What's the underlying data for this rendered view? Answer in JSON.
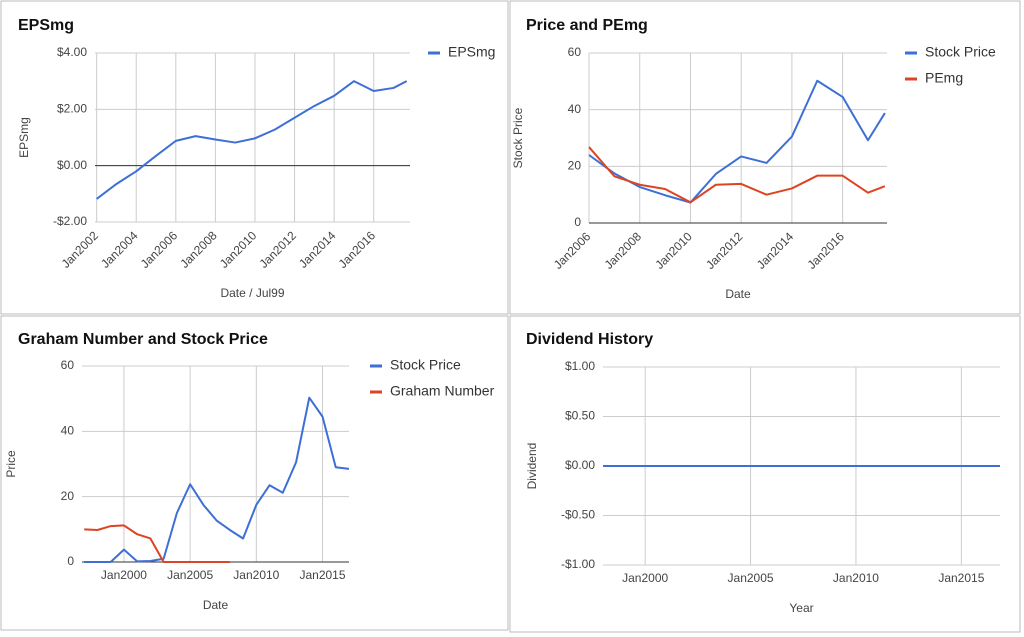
{
  "chart_data": [
    {
      "type": "line",
      "title": "EPSmg",
      "x_label": "Date / Jul99",
      "y_label": "EPSmg",
      "legend": "right",
      "grid": true,
      "x": [
        "2002-01",
        "2003-01",
        "2004-01",
        "2005-01",
        "2006-01",
        "2007-01",
        "2008-01",
        "2009-01",
        "2010-01",
        "2011-01",
        "2012-01",
        "2013-01",
        "2014-01",
        "2015-01",
        "2016-01",
        "2017-01",
        "2017-09"
      ],
      "series": [
        {
          "name": "EPSmg",
          "color": "#3d6fd6",
          "values": [
            -1.18,
            -0.65,
            -0.2,
            0.35,
            0.88,
            1.05,
            0.93,
            0.82,
            0.97,
            1.28,
            1.7,
            2.12,
            2.48,
            3.0,
            2.65,
            2.76,
            3.0
          ]
        }
      ],
      "xlim": [
        "2001-12",
        "2017-11"
      ],
      "xticks": [
        {
          "value": "2002-01",
          "label": "Jan2002"
        },
        {
          "value": "2004-01",
          "label": "Jan2004"
        },
        {
          "value": "2006-01",
          "label": "Jan2006"
        },
        {
          "value": "2008-01",
          "label": "Jan2008"
        },
        {
          "value": "2010-01",
          "label": "Jan2010"
        },
        {
          "value": "2012-01",
          "label": "Jan2012"
        },
        {
          "value": "2014-01",
          "label": "Jan2014"
        },
        {
          "value": "2016-01",
          "label": "Jan2016"
        }
      ],
      "ylim": [
        -2,
        4
      ],
      "yticks": [
        {
          "value": -2,
          "label": "-$2.00"
        },
        {
          "value": 0,
          "label": "$0.00"
        },
        {
          "value": 2,
          "label": "$2.00"
        },
        {
          "value": 4,
          "label": "$4.00"
        }
      ]
    },
    {
      "type": "line",
      "title": "Price and PEmg",
      "x_label": "Date",
      "y_label": "Stock Price",
      "legend": "right",
      "grid": true,
      "x": [
        "2006-01",
        "2007-01",
        "2008-01",
        "2009-01",
        "2010-01",
        "2011-01",
        "2012-01",
        "2013-01",
        "2014-01",
        "2015-01",
        "2016-01",
        "2017-01",
        "2017-09"
      ],
      "series": [
        {
          "name": "Stock Price",
          "color": "#3d6fd6",
          "values": [
            24,
            17.5,
            12.7,
            9.8,
            7.2,
            17.3,
            23.5,
            21.2,
            30.5,
            50.2,
            44.5,
            29.2,
            38.8
          ]
        },
        {
          "name": "PEmg",
          "color": "#dd4422",
          "values": [
            26.8,
            16.5,
            13.5,
            12,
            7.3,
            13.5,
            13.8,
            10,
            12.2,
            16.7,
            16.7,
            10.7,
            13
          ]
        }
      ],
      "xlim": [
        "2006-01",
        "2017-10"
      ],
      "xticks": [
        {
          "value": "2006-01",
          "label": "Jan2006"
        },
        {
          "value": "2008-01",
          "label": "Jan2008"
        },
        {
          "value": "2010-01",
          "label": "Jan2010"
        },
        {
          "value": "2012-01",
          "label": "Jan2012"
        },
        {
          "value": "2014-01",
          "label": "Jan2014"
        },
        {
          "value": "2016-01",
          "label": "Jan2016"
        }
      ],
      "ylim": [
        0,
        60
      ],
      "yticks": [
        0,
        20,
        40,
        60
      ]
    },
    {
      "type": "line",
      "title": "Graham Number and Stock Price",
      "x_label": "Date",
      "y_label": "Price",
      "legend": "right",
      "grid": true,
      "x": [
        "1997-01",
        "1998-01",
        "1999-01",
        "2000-01",
        "2001-01",
        "2002-01",
        "2003-01",
        "2004-01",
        "2005-01",
        "2006-01",
        "2007-01",
        "2008-01",
        "2009-01",
        "2010-01",
        "2011-01",
        "2012-01",
        "2013-01",
        "2014-01",
        "2015-01",
        "2016-01",
        "2017-01"
      ],
      "series": [
        {
          "name": "Stock Price",
          "color": "#3d6fd6",
          "values": [
            0,
            0,
            0,
            3.8,
            0.2,
            0.3,
            1,
            15,
            23.8,
            17.5,
            12.7,
            9.8,
            7.2,
            17.5,
            23.5,
            21.2,
            30.5,
            50.3,
            44.5,
            29,
            28.5
          ]
        },
        {
          "name": "Graham Number",
          "color": "#dd4422",
          "values": [
            10,
            9.8,
            11,
            11.2,
            8.5,
            7.2,
            0,
            0,
            0,
            0,
            0,
            0,
            null,
            null,
            null,
            null,
            null,
            null,
            null,
            null,
            null
          ]
        }
      ],
      "xlim": [
        "1996-11",
        "2017-01"
      ],
      "xticks": [
        {
          "value": "2000-01",
          "label": "Jan2000"
        },
        {
          "value": "2005-01",
          "label": "Jan2005"
        },
        {
          "value": "2010-01",
          "label": "Jan2010"
        },
        {
          "value": "2015-01",
          "label": "Jan2015"
        }
      ],
      "ylim": [
        0,
        60
      ],
      "yticks": [
        0,
        20,
        40,
        60
      ]
    },
    {
      "type": "line",
      "title": "Dividend History",
      "x_label": "Year",
      "y_label": "Dividend",
      "legend": "none",
      "grid": true,
      "x": [
        "1998-01",
        "1999-01",
        "2000-01",
        "2001-01",
        "2002-01",
        "2003-01",
        "2004-01",
        "2005-01",
        "2006-01",
        "2007-01",
        "2008-01",
        "2009-01",
        "2010-01",
        "2011-01",
        "2012-01",
        "2013-01",
        "2014-01",
        "2015-01",
        "2016-01",
        "2016-11"
      ],
      "series": [
        {
          "color": "#3d6fd6",
          "values": [
            0,
            0,
            0,
            0,
            0,
            0,
            0,
            0,
            0,
            0,
            0,
            0,
            0,
            0,
            0,
            0,
            0,
            0,
            0,
            0
          ]
        }
      ],
      "xlim": [
        "1998-01",
        "2016-11"
      ],
      "xticks": [
        {
          "value": "2000-01",
          "label": "Jan2000"
        },
        {
          "value": "2005-01",
          "label": "Jan2005"
        },
        {
          "value": "2010-01",
          "label": "Jan2010"
        },
        {
          "value": "2015-01",
          "label": "Jan2015"
        }
      ],
      "ylim": [
        -1,
        1
      ],
      "yticks": [
        {
          "value": -1,
          "label": "-$1.00"
        },
        {
          "value": -0.5,
          "label": "-$0.50"
        },
        {
          "value": 0,
          "label": "$0.00"
        },
        {
          "value": 0.5,
          "label": "$0.50"
        },
        {
          "value": 1,
          "label": "$1.00"
        }
      ]
    }
  ]
}
